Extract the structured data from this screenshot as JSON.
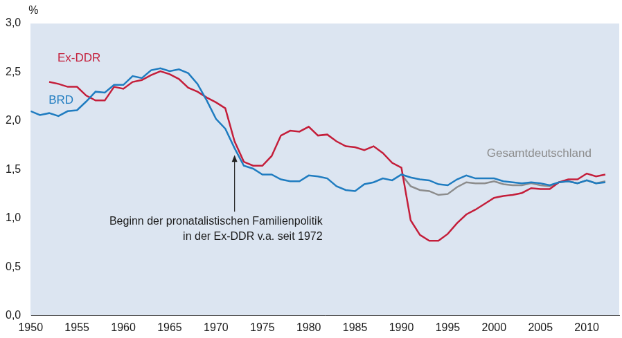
{
  "chart_data": {
    "type": "line",
    "y_label": "%",
    "x": [
      1950,
      1951,
      1952,
      1953,
      1954,
      1955,
      1956,
      1957,
      1958,
      1959,
      1960,
      1961,
      1962,
      1963,
      1964,
      1965,
      1966,
      1967,
      1968,
      1969,
      1970,
      1971,
      1972,
      1973,
      1974,
      1975,
      1976,
      1977,
      1978,
      1979,
      1980,
      1981,
      1982,
      1983,
      1984,
      1985,
      1986,
      1987,
      1988,
      1989,
      1990,
      1991,
      1992,
      1993,
      1994,
      1995,
      1996,
      1997,
      1998,
      1999,
      2000,
      2001,
      2002,
      2003,
      2004,
      2005,
      2006,
      2007,
      2008,
      2009,
      2010,
      2011,
      2012
    ],
    "series": [
      {
        "name": "BRD",
        "color": "#1f7cc0",
        "values": [
          2.1,
          2.06,
          2.08,
          2.05,
          2.1,
          2.11,
          2.2,
          2.3,
          2.29,
          2.37,
          2.37,
          2.46,
          2.44,
          2.52,
          2.54,
          2.51,
          2.53,
          2.49,
          2.38,
          2.21,
          2.02,
          1.92,
          1.72,
          1.54,
          1.51,
          1.45,
          1.45,
          1.4,
          1.38,
          1.38,
          1.44,
          1.43,
          1.41,
          1.33,
          1.29,
          1.28,
          1.35,
          1.37,
          1.41,
          1.39,
          1.45,
          1.42,
          1.4,
          1.39,
          1.35,
          1.34,
          1.4,
          1.44,
          1.41,
          1.41,
          1.41,
          1.38,
          1.37,
          1.36,
          1.37,
          1.36,
          1.34,
          1.37,
          1.38,
          1.36,
          1.39,
          1.36,
          1.37
        ]
      },
      {
        "name": "Ex-DDR",
        "color": "#c41e3a",
        "values": [
          null,
          null,
          2.4,
          2.38,
          2.35,
          2.35,
          2.26,
          2.21,
          2.21,
          2.35,
          2.33,
          2.4,
          2.42,
          2.47,
          2.51,
          2.48,
          2.43,
          2.34,
          2.3,
          2.24,
          2.19,
          2.13,
          1.79,
          1.58,
          1.54,
          1.54,
          1.64,
          1.85,
          1.9,
          1.89,
          1.94,
          1.85,
          1.86,
          1.79,
          1.74,
          1.73,
          1.7,
          1.74,
          1.67,
          1.57,
          1.52,
          0.98,
          0.83,
          0.77,
          0.77,
          0.84,
          0.95,
          1.04,
          1.09,
          1.15,
          1.21,
          1.23,
          1.24,
          1.26,
          1.31,
          1.3,
          1.3,
          1.37,
          1.4,
          1.4,
          1.46,
          1.43,
          1.45
        ]
      },
      {
        "name": "Gesamtdeutschland",
        "color": "#8c8c8c",
        "values": [
          null,
          null,
          null,
          null,
          null,
          null,
          null,
          null,
          null,
          null,
          null,
          null,
          null,
          null,
          null,
          null,
          null,
          null,
          null,
          null,
          null,
          null,
          null,
          null,
          null,
          null,
          null,
          null,
          null,
          null,
          null,
          null,
          null,
          null,
          null,
          null,
          null,
          null,
          null,
          null,
          1.45,
          1.33,
          1.29,
          1.28,
          1.24,
          1.25,
          1.32,
          1.37,
          1.36,
          1.36,
          1.38,
          1.35,
          1.34,
          1.34,
          1.36,
          1.34,
          1.33,
          1.37,
          1.38,
          1.36,
          1.39,
          1.36,
          1.38
        ]
      }
    ],
    "xlim": [
      1950,
      2013.5
    ],
    "xticks": [
      1950,
      1955,
      1960,
      1965,
      1970,
      1975,
      1980,
      1985,
      1990,
      1995,
      2000,
      2005,
      2010
    ],
    "ylim": [
      0,
      3
    ],
    "yticks": [
      {
        "value": 0,
        "label": "0,0"
      },
      {
        "value": 0.5,
        "label": "0,5"
      },
      {
        "value": 1,
        "label": "1,0"
      },
      {
        "value": 1.5,
        "label": "1,5"
      },
      {
        "value": 2,
        "label": "2,0"
      },
      {
        "value": 2.5,
        "label": "2,5"
      },
      {
        "value": 3,
        "label": "3,0"
      }
    ],
    "grid": false,
    "annotations": [
      {
        "text": [
          "Beginn der pronatalistischen Familienpolitik",
          "in der Ex-DDR v.a. seit 1972"
        ],
        "x": 1972,
        "y": 1.65
      }
    ]
  }
}
